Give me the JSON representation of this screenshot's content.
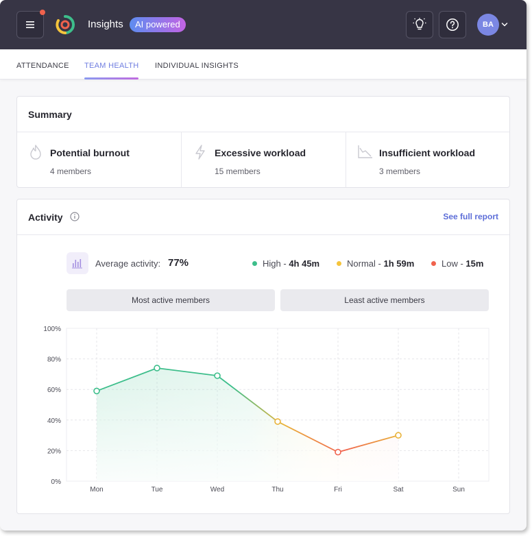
{
  "header": {
    "app_title": "Insights",
    "ai_badge": "AI powered",
    "avatar_initials": "BA",
    "colors": {
      "bar": "#373545",
      "accent": "#6f7de0"
    },
    "icons": [
      "menu-icon",
      "lightbulb-icon",
      "help-icon",
      "chevron-down-icon"
    ]
  },
  "tabs": [
    {
      "label": "ATTENDANCE"
    },
    {
      "label": "TEAM HEALTH",
      "active": true
    },
    {
      "label": "INDIVIDUAL INSIGHTS"
    }
  ],
  "summary": {
    "title": "Summary",
    "items": [
      {
        "label": "Potential burnout",
        "count": "4 members",
        "icon": "flame-icon"
      },
      {
        "label": "Excessive workload",
        "count": "15 members",
        "icon": "lightning-icon"
      },
      {
        "label": "Insufficient workload",
        "count": "3 members",
        "icon": "chart-decline-icon"
      }
    ]
  },
  "activity": {
    "title": "Activity",
    "see_full_report": "See full report",
    "average_label": "Average activity:",
    "average_value": "77%",
    "legend": [
      {
        "label": "High",
        "value": "4h 45m",
        "color": "#3dbe8b"
      },
      {
        "label": "Normal",
        "value": "1h 59m",
        "color": "#f5c43c"
      },
      {
        "label": "Low",
        "value": "15m",
        "color": "#f0624d"
      }
    ],
    "segments": {
      "most_active": "Most active members",
      "least_active": "Least active members"
    }
  },
  "chart_data": {
    "type": "line",
    "categories": [
      "Mon",
      "Tue",
      "Wed",
      "Thu",
      "Fri",
      "Sat",
      "Sun"
    ],
    "series": [
      {
        "values": [
          59,
          74,
          69,
          39,
          19,
          30,
          null
        ]
      }
    ],
    "yticks": [
      "0%",
      "20%",
      "40%",
      "60%",
      "80%",
      "100%"
    ],
    "ylim": [
      0,
      100
    ],
    "grid": true,
    "line_colors": {
      "high": "#3dbe8b",
      "normal": "#e9b33a",
      "low": "#f0624d"
    }
  }
}
